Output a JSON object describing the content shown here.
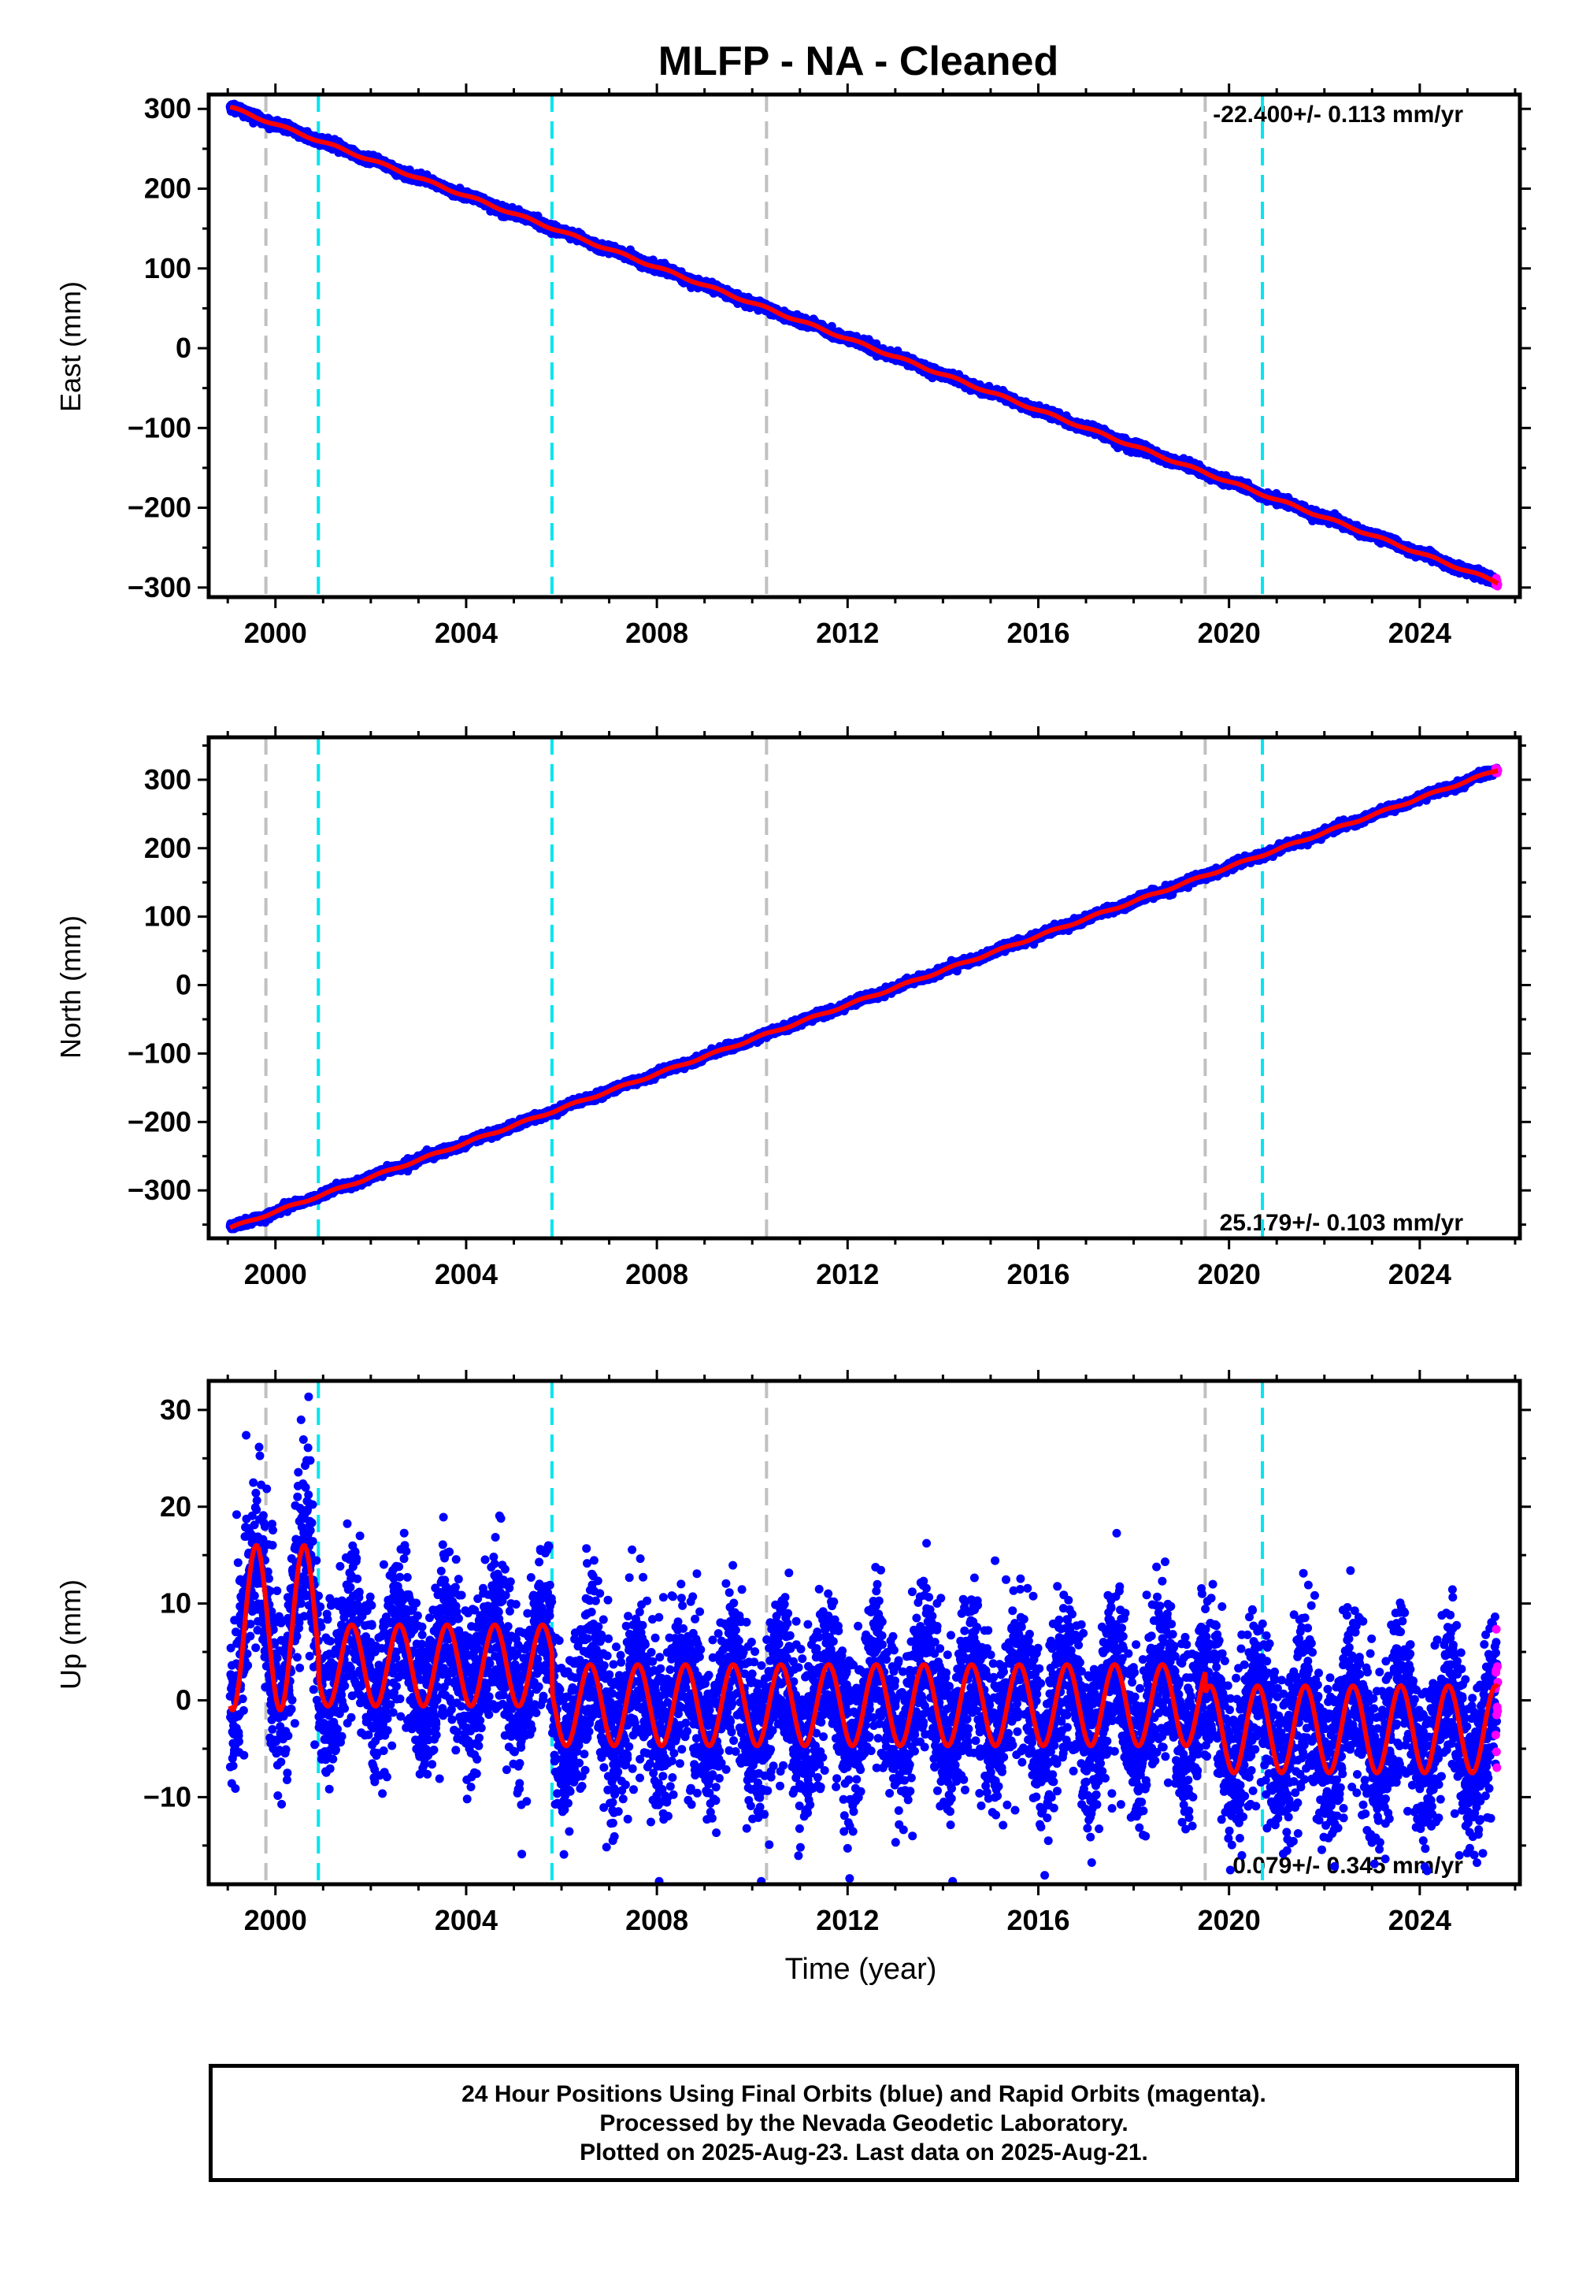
{
  "colors": {
    "final_orbits": "#0000ff",
    "rapid_orbits": "#ff00ff",
    "model_fit": "#ff0000",
    "antenna_change_line": "#c0c0c0",
    "equipment_change_line": "#00e5ee",
    "frame": "#000000"
  },
  "chart_data": [
    {
      "type": "scatter",
      "title": "MLFP  - NA - Cleaned",
      "xlabel": "",
      "ylabel": "East (mm)",
      "xlim": [
        1998.6,
        2026.1
      ],
      "ylim": [
        -312,
        318
      ],
      "x_ticks": [
        "2000",
        "2004",
        "2008",
        "2012",
        "2016",
        "2020",
        "2024"
      ],
      "y_ticks": [
        "300",
        "200",
        "100",
        "0",
        "−100",
        "−200",
        "−300"
      ],
      "rate_label": "-22.400+/- 0.113 mm/yr",
      "rate_position": "top-right",
      "data_span": [
        1999.05,
        2025.64
      ],
      "trend": {
        "start_value": 302,
        "slope_mm_per_yr": -22.4
      },
      "noise_mm": 2.5,
      "seasonal_amplitude_mm": 1.5,
      "dashed_lines_gray": [
        1999.8,
        2010.3,
        2019.5
      ],
      "dashed_lines_cyan": [
        2000.9,
        2005.8,
        2020.7
      ],
      "series": [
        {
          "name": "Final Orbits",
          "color": "#0000ff"
        },
        {
          "name": "Rapid Orbits",
          "color": "#ff00ff"
        }
      ]
    },
    {
      "type": "scatter",
      "title": "",
      "xlabel": "",
      "ylabel": "North (mm)",
      "xlim": [
        1998.6,
        2026.1
      ],
      "ylim": [
        -370,
        362
      ],
      "x_ticks": [
        "2000",
        "2004",
        "2008",
        "2012",
        "2016",
        "2020",
        "2024"
      ],
      "y_ticks": [
        "300",
        "200",
        "100",
        "0",
        "−100",
        "−200",
        "−300"
      ],
      "rate_label": "25.179+/- 0.103 mm/yr",
      "rate_position": "bottom-right",
      "data_span": [
        1999.05,
        2025.64
      ],
      "trend": {
        "start_value": -355,
        "slope_mm_per_yr": 25.179
      },
      "noise_mm": 2.5,
      "seasonal_amplitude_mm": 1.5,
      "dashed_lines_gray": [
        1999.8,
        2010.3,
        2019.5
      ],
      "dashed_lines_cyan": [
        2000.9,
        2005.8,
        2020.7
      ],
      "series": [
        {
          "name": "Final Orbits",
          "color": "#0000ff"
        },
        {
          "name": "Rapid Orbits",
          "color": "#ff00ff"
        }
      ]
    },
    {
      "type": "scatter",
      "title": "",
      "xlabel": "Time (year)",
      "ylabel": "Up (mm)",
      "xlim": [
        1998.6,
        2026.1
      ],
      "ylim": [
        -19,
        33
      ],
      "x_ticks": [
        "2000",
        "2004",
        "2008",
        "2012",
        "2016",
        "2020",
        "2024"
      ],
      "y_ticks": [
        "30",
        "20",
        "10",
        "0",
        "−10"
      ],
      "rate_label": "0.079+/- 0.345 mm/yr",
      "rate_position": "bottom-right",
      "data_span": [
        1999.05,
        2025.64
      ],
      "noise_mm": 4.0,
      "seasonal_model_segments": [
        {
          "from": 1999.05,
          "to": 2000.9,
          "offset": 7.5,
          "amplitude": 8.5
        },
        {
          "from": 2000.9,
          "to": 2005.8,
          "offset": 3.6,
          "amplitude": 4.2
        },
        {
          "from": 2005.8,
          "to": 2019.5,
          "offset": -0.5,
          "amplitude": 4.2
        },
        {
          "from": 2019.5,
          "to": 2025.64,
          "offset": -3.0,
          "amplitude": 4.5
        }
      ],
      "dashed_lines_gray": [
        1999.8,
        2010.3,
        2019.5
      ],
      "dashed_lines_cyan": [
        2000.9,
        2005.8,
        2020.7
      ],
      "series": [
        {
          "name": "Final Orbits",
          "color": "#0000ff"
        },
        {
          "name": "Rapid Orbits",
          "color": "#ff00ff"
        }
      ]
    }
  ],
  "caption": {
    "line1": "24 Hour Positions Using Final Orbits (blue) and Rapid Orbits (magenta).",
    "line2": "Processed by the Nevada Geodetic Laboratory.",
    "line3": "Plotted on 2025-Aug-23. Last data on 2025-Aug-21."
  }
}
